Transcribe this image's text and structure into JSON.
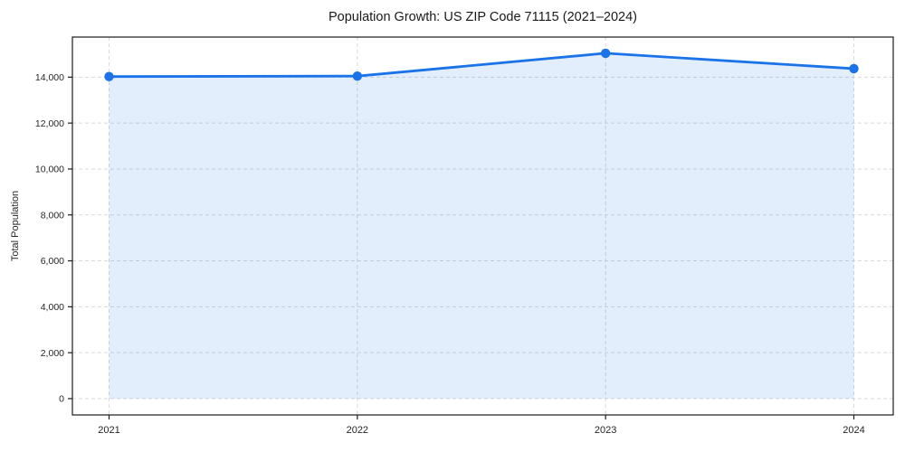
{
  "chart_data": {
    "type": "line-area",
    "title": "Population Growth: US ZIP Code 71115 (2021–2024)",
    "xlabel": "",
    "ylabel": "Total Population",
    "categories": [
      "2021",
      "2022",
      "2023",
      "2024"
    ],
    "series": [
      {
        "name": "Total Population",
        "values": [
          14025,
          14045,
          15040,
          14370
        ]
      }
    ],
    "ylim": [
      -710,
      15745
    ],
    "yticks": [
      0,
      2000,
      4000,
      6000,
      8000,
      10000,
      12000,
      14000
    ],
    "ytick_labels": [
      "0",
      "2,000",
      "4,000",
      "6,000",
      "8,000",
      "10,000",
      "12,000",
      "14,000"
    ],
    "grid": true,
    "grid_style": "dashed",
    "legend": false,
    "marker": "circle",
    "colors": {
      "line": "#1a73e8",
      "fill": "rgba(26,115,232,0.12)",
      "grid": "#d9d9d9",
      "spine": "#1c1c1c",
      "text": "#262626",
      "title": "#1a1a1a",
      "background": "#ffffff"
    }
  }
}
